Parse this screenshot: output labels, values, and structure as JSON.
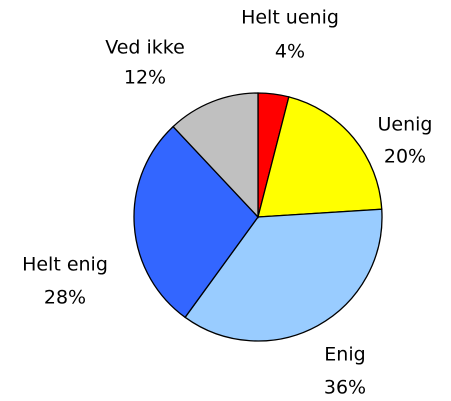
{
  "chart_data": {
    "type": "pie",
    "categories": [
      "Helt uenig",
      "Uenig",
      "Enig",
      "Helt enig",
      "Ved ikke"
    ],
    "values": [
      4,
      20,
      36,
      28,
      12
    ],
    "value_labels": [
      "4%",
      "20%",
      "36%",
      "28%",
      "12%"
    ],
    "colors": [
      "#ff0000",
      "#ffff00",
      "#99ccff",
      "#3366ff",
      "#c0c0c0"
    ]
  }
}
